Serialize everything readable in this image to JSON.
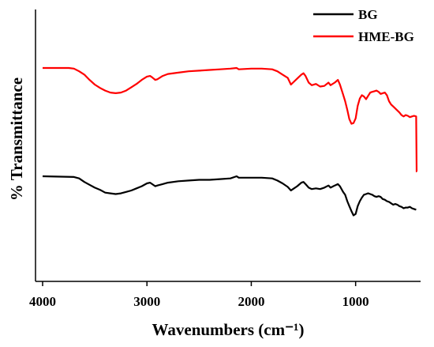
{
  "chart_data": {
    "type": "line",
    "xlabel": "Wavenumbers (cm⁻¹)",
    "ylabel": "% Transmittance",
    "xlim": [
      4000,
      400
    ],
    "x_reversed": true,
    "xticks": [
      4000,
      3000,
      2000,
      1000
    ],
    "xtick_labels": [
      "4000",
      "3000",
      "2000",
      "1000"
    ],
    "y_tick_labels_shown": false,
    "grid": false,
    "legend_position": "top-right",
    "colors": {
      "BG": "#000000",
      "HME-BG": "#ff0000"
    },
    "series": [
      {
        "name": "HME-BG",
        "color": "#ff0000",
        "points": [
          [
            4000,
            0.0
          ],
          [
            3750,
            0.0
          ],
          [
            3700,
            0.01
          ],
          [
            3650,
            0.05
          ],
          [
            3600,
            0.1
          ],
          [
            3550,
            0.18
          ],
          [
            3500,
            0.25
          ],
          [
            3450,
            0.3
          ],
          [
            3400,
            0.34
          ],
          [
            3350,
            0.37
          ],
          [
            3300,
            0.38
          ],
          [
            3250,
            0.37
          ],
          [
            3200,
            0.34
          ],
          [
            3150,
            0.29
          ],
          [
            3100,
            0.24
          ],
          [
            3050,
            0.18
          ],
          [
            3000,
            0.13
          ],
          [
            2970,
            0.12
          ],
          [
            2950,
            0.14
          ],
          [
            2920,
            0.18
          ],
          [
            2900,
            0.17
          ],
          [
            2850,
            0.12
          ],
          [
            2800,
            0.09
          ],
          [
            2700,
            0.07
          ],
          [
            2600,
            0.05
          ],
          [
            2500,
            0.04
          ],
          [
            2400,
            0.03
          ],
          [
            2300,
            0.02
          ],
          [
            2200,
            0.01
          ],
          [
            2140,
            0.0
          ],
          [
            2120,
            0.02
          ],
          [
            2000,
            0.01
          ],
          [
            1900,
            0.01
          ],
          [
            1800,
            0.02
          ],
          [
            1750,
            0.05
          ],
          [
            1700,
            0.1
          ],
          [
            1650,
            0.15
          ],
          [
            1620,
            0.25
          ],
          [
            1600,
            0.22
          ],
          [
            1560,
            0.16
          ],
          [
            1520,
            0.1
          ],
          [
            1500,
            0.08
          ],
          [
            1480,
            0.12
          ],
          [
            1450,
            0.22
          ],
          [
            1420,
            0.26
          ],
          [
            1380,
            0.24
          ],
          [
            1340,
            0.28
          ],
          [
            1300,
            0.27
          ],
          [
            1260,
            0.22
          ],
          [
            1240,
            0.26
          ],
          [
            1200,
            0.22
          ],
          [
            1170,
            0.18
          ],
          [
            1150,
            0.25
          ],
          [
            1120,
            0.4
          ],
          [
            1100,
            0.5
          ],
          [
            1080,
            0.63
          ],
          [
            1060,
            0.77
          ],
          [
            1040,
            0.84
          ],
          [
            1020,
            0.83
          ],
          [
            1000,
            0.76
          ],
          [
            980,
            0.57
          ],
          [
            960,
            0.46
          ],
          [
            940,
            0.41
          ],
          [
            920,
            0.43
          ],
          [
            900,
            0.47
          ],
          [
            880,
            0.42
          ],
          [
            860,
            0.37
          ],
          [
            840,
            0.36
          ],
          [
            820,
            0.35
          ],
          [
            800,
            0.34
          ],
          [
            780,
            0.36
          ],
          [
            760,
            0.39
          ],
          [
            740,
            0.38
          ],
          [
            720,
            0.37
          ],
          [
            700,
            0.41
          ],
          [
            680,
            0.5
          ],
          [
            660,
            0.55
          ],
          [
            640,
            0.58
          ],
          [
            620,
            0.61
          ],
          [
            600,
            0.64
          ],
          [
            580,
            0.67
          ],
          [
            560,
            0.71
          ],
          [
            540,
            0.73
          ],
          [
            520,
            0.71
          ],
          [
            500,
            0.72
          ],
          [
            480,
            0.74
          ],
          [
            460,
            0.73
          ],
          [
            440,
            0.72
          ],
          [
            420,
            0.73
          ],
          [
            415,
            1.56
          ],
          [
            413,
            1.56
          ]
        ]
      },
      {
        "name": "BG",
        "color": "#000000",
        "points": [
          [
            4000,
            0.0
          ],
          [
            3700,
            0.01
          ],
          [
            3650,
            0.03
          ],
          [
            3600,
            0.08
          ],
          [
            3550,
            0.12
          ],
          [
            3500,
            0.16
          ],
          [
            3450,
            0.19
          ],
          [
            3400,
            0.23
          ],
          [
            3350,
            0.24
          ],
          [
            3300,
            0.25
          ],
          [
            3250,
            0.24
          ],
          [
            3200,
            0.22
          ],
          [
            3150,
            0.2
          ],
          [
            3100,
            0.17
          ],
          [
            3050,
            0.14
          ],
          [
            3000,
            0.1
          ],
          [
            2970,
            0.09
          ],
          [
            2950,
            0.11
          ],
          [
            2920,
            0.14
          ],
          [
            2900,
            0.13
          ],
          [
            2850,
            0.11
          ],
          [
            2800,
            0.09
          ],
          [
            2700,
            0.07
          ],
          [
            2600,
            0.06
          ],
          [
            2500,
            0.05
          ],
          [
            2400,
            0.05
          ],
          [
            2300,
            0.04
          ],
          [
            2200,
            0.03
          ],
          [
            2140,
            0.0
          ],
          [
            2120,
            0.02
          ],
          [
            2000,
            0.02
          ],
          [
            1900,
            0.02
          ],
          [
            1800,
            0.03
          ],
          [
            1750,
            0.06
          ],
          [
            1700,
            0.1
          ],
          [
            1650,
            0.15
          ],
          [
            1620,
            0.2
          ],
          [
            1600,
            0.18
          ],
          [
            1560,
            0.14
          ],
          [
            1520,
            0.09
          ],
          [
            1500,
            0.08
          ],
          [
            1480,
            0.11
          ],
          [
            1450,
            0.16
          ],
          [
            1420,
            0.18
          ],
          [
            1380,
            0.17
          ],
          [
            1340,
            0.18
          ],
          [
            1300,
            0.16
          ],
          [
            1260,
            0.13
          ],
          [
            1240,
            0.16
          ],
          [
            1200,
            0.13
          ],
          [
            1170,
            0.11
          ],
          [
            1150,
            0.14
          ],
          [
            1120,
            0.22
          ],
          [
            1100,
            0.26
          ],
          [
            1080,
            0.35
          ],
          [
            1060,
            0.42
          ],
          [
            1040,
            0.49
          ],
          [
            1020,
            0.55
          ],
          [
            1000,
            0.53
          ],
          [
            980,
            0.42
          ],
          [
            960,
            0.35
          ],
          [
            940,
            0.3
          ],
          [
            920,
            0.26
          ],
          [
            900,
            0.25
          ],
          [
            880,
            0.24
          ],
          [
            860,
            0.25
          ],
          [
            840,
            0.26
          ],
          [
            820,
            0.28
          ],
          [
            800,
            0.29
          ],
          [
            780,
            0.28
          ],
          [
            760,
            0.29
          ],
          [
            740,
            0.32
          ],
          [
            720,
            0.33
          ],
          [
            700,
            0.35
          ],
          [
            680,
            0.36
          ],
          [
            660,
            0.38
          ],
          [
            640,
            0.4
          ],
          [
            620,
            0.39
          ],
          [
            600,
            0.4
          ],
          [
            580,
            0.42
          ],
          [
            560,
            0.43
          ],
          [
            540,
            0.45
          ],
          [
            520,
            0.44
          ],
          [
            500,
            0.44
          ],
          [
            480,
            0.43
          ],
          [
            460,
            0.45
          ],
          [
            440,
            0.46
          ],
          [
            420,
            0.47
          ]
        ]
      }
    ]
  },
  "legend": [
    {
      "label": "BG",
      "color": "#000000"
    },
    {
      "label": "HME-BG",
      "color": "#ff0000"
    }
  ]
}
